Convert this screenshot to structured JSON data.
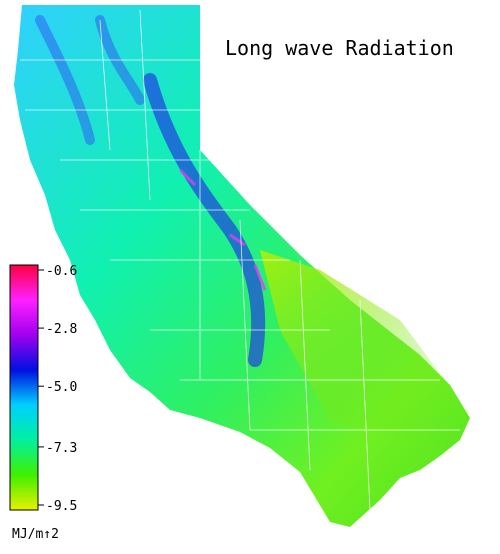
{
  "title": "Long wave Radiation",
  "colorbar": {
    "lim": [
      -9.5,
      -0.6
    ],
    "ticks": [
      -0.6,
      -2.8,
      {
        "value": -5,
        "label": "-5.0"
      },
      -7.3,
      -9.5
    ],
    "colors": [
      "#e8f000",
      "#40f000",
      "#00f0a0",
      "#00d0ff",
      "#0010e0",
      "#a000f0",
      "#ff20ff",
      "#ff0040"
    ],
    "label": "MJ/m↑2"
  }
}
